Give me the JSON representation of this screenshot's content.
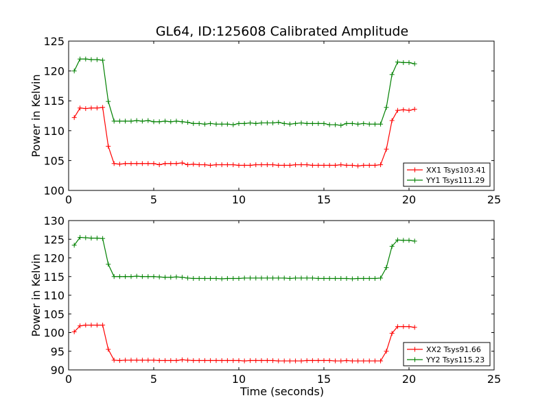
{
  "chart_data": [
    {
      "type": "line",
      "title": "GL64, ID:125608 Calibrated Amplitude",
      "xlabel": "",
      "ylabel": "Power in Kelvin",
      "xlim": [
        0,
        25
      ],
      "ylim": [
        100,
        125
      ],
      "xticks": [
        "0",
        "5",
        "10",
        "15",
        "20",
        "25"
      ],
      "yticks": [
        "100",
        "105",
        "110",
        "115",
        "120",
        "125"
      ],
      "legend_position": "lower-right",
      "series": [
        {
          "name": "XX1 Tsys103.41",
          "color": "#ff0000",
          "x": [
            0.33,
            0.67,
            1.0,
            1.33,
            1.67,
            2.0,
            2.33,
            2.67,
            3.0,
            3.33,
            3.67,
            4.0,
            4.33,
            4.67,
            5.0,
            5.33,
            5.67,
            6.0,
            6.33,
            6.67,
            7.0,
            7.33,
            7.67,
            8.0,
            8.33,
            8.67,
            9.0,
            9.33,
            9.67,
            10.0,
            10.33,
            10.67,
            11.0,
            11.33,
            11.67,
            12.0,
            12.33,
            12.67,
            13.0,
            13.33,
            13.67,
            14.0,
            14.33,
            14.67,
            15.0,
            15.33,
            15.67,
            16.0,
            16.33,
            16.67,
            17.0,
            17.33,
            17.67,
            18.0,
            18.33,
            18.67,
            19.0,
            19.33,
            19.67,
            20.0,
            20.33
          ],
          "y": [
            112.2,
            113.8,
            113.7,
            113.8,
            113.8,
            113.9,
            107.4,
            104.5,
            104.4,
            104.5,
            104.5,
            104.5,
            104.5,
            104.5,
            104.5,
            104.3,
            104.5,
            104.5,
            104.5,
            104.6,
            104.3,
            104.4,
            104.3,
            104.3,
            104.2,
            104.3,
            104.3,
            104.3,
            104.3,
            104.2,
            104.2,
            104.2,
            104.3,
            104.3,
            104.3,
            104.3,
            104.2,
            104.2,
            104.2,
            104.3,
            104.3,
            104.3,
            104.2,
            104.2,
            104.2,
            104.2,
            104.2,
            104.3,
            104.2,
            104.2,
            104.1,
            104.2,
            104.2,
            104.2,
            104.3,
            106.9,
            111.7,
            113.4,
            113.5,
            113.4,
            113.6
          ]
        },
        {
          "name": "YY1 Tsys111.29",
          "color": "#008000",
          "x": [
            0.33,
            0.67,
            1.0,
            1.33,
            1.67,
            2.0,
            2.33,
            2.67,
            3.0,
            3.33,
            3.67,
            4.0,
            4.33,
            4.67,
            5.0,
            5.33,
            5.67,
            6.0,
            6.33,
            6.67,
            7.0,
            7.33,
            7.67,
            8.0,
            8.33,
            8.67,
            9.0,
            9.33,
            9.67,
            10.0,
            10.33,
            10.67,
            11.0,
            11.33,
            11.67,
            12.0,
            12.33,
            12.67,
            13.0,
            13.33,
            13.67,
            14.0,
            14.33,
            14.67,
            15.0,
            15.33,
            15.67,
            16.0,
            16.33,
            16.67,
            17.0,
            17.33,
            17.67,
            18.0,
            18.33,
            18.67,
            19.0,
            19.33,
            19.67,
            20.0,
            20.33
          ],
          "y": [
            120.0,
            122.0,
            122.0,
            121.9,
            121.9,
            121.8,
            114.9,
            111.6,
            111.6,
            111.6,
            111.6,
            111.7,
            111.6,
            111.7,
            111.5,
            111.5,
            111.6,
            111.5,
            111.6,
            111.5,
            111.4,
            111.2,
            111.2,
            111.1,
            111.2,
            111.1,
            111.1,
            111.1,
            111.0,
            111.2,
            111.2,
            111.3,
            111.2,
            111.3,
            111.3,
            111.3,
            111.4,
            111.2,
            111.1,
            111.2,
            111.3,
            111.2,
            111.2,
            111.2,
            111.2,
            111.0,
            111.0,
            110.9,
            111.2,
            111.2,
            111.1,
            111.2,
            111.1,
            111.1,
            111.1,
            113.9,
            119.4,
            121.5,
            121.4,
            121.4,
            121.2
          ]
        }
      ]
    },
    {
      "type": "line",
      "title": "",
      "xlabel": "Time (seconds)",
      "ylabel": "Power in Kelvin",
      "xlim": [
        0,
        25
      ],
      "ylim": [
        90,
        130
      ],
      "xticks": [
        "0",
        "5",
        "10",
        "15",
        "20",
        "25"
      ],
      "yticks": [
        "90",
        "95",
        "100",
        "105",
        "110",
        "115",
        "120",
        "125",
        "130"
      ],
      "legend_position": "lower-right",
      "series": [
        {
          "name": "XX2 Tsys91.66",
          "color": "#ff0000",
          "x": [
            0.33,
            0.67,
            1.0,
            1.33,
            1.67,
            2.0,
            2.33,
            2.67,
            3.0,
            3.33,
            3.67,
            4.0,
            4.33,
            4.67,
            5.0,
            5.33,
            5.67,
            6.0,
            6.33,
            6.67,
            7.0,
            7.33,
            7.67,
            8.0,
            8.33,
            8.67,
            9.0,
            9.33,
            9.67,
            10.0,
            10.33,
            10.67,
            11.0,
            11.33,
            11.67,
            12.0,
            12.33,
            12.67,
            13.0,
            13.33,
            13.67,
            14.0,
            14.33,
            14.67,
            15.0,
            15.33,
            15.67,
            16.0,
            16.33,
            16.67,
            17.0,
            17.33,
            17.67,
            18.0,
            18.33,
            18.67,
            19.0,
            19.33,
            19.67,
            20.0,
            20.33
          ],
          "y": [
            100.2,
            101.8,
            102.0,
            102.0,
            102.0,
            102.0,
            95.5,
            92.6,
            92.5,
            92.6,
            92.6,
            92.6,
            92.6,
            92.6,
            92.6,
            92.5,
            92.5,
            92.5,
            92.5,
            92.7,
            92.6,
            92.5,
            92.5,
            92.5,
            92.5,
            92.5,
            92.5,
            92.5,
            92.5,
            92.5,
            92.4,
            92.5,
            92.5,
            92.5,
            92.5,
            92.5,
            92.4,
            92.4,
            92.4,
            92.4,
            92.4,
            92.5,
            92.5,
            92.5,
            92.5,
            92.5,
            92.4,
            92.4,
            92.5,
            92.4,
            92.4,
            92.4,
            92.4,
            92.4,
            92.4,
            95.0,
            99.8,
            101.6,
            101.6,
            101.6,
            101.4
          ]
        },
        {
          "name": "YY2 Tsys115.23",
          "color": "#008000",
          "x": [
            0.33,
            0.67,
            1.0,
            1.33,
            1.67,
            2.0,
            2.33,
            2.67,
            3.0,
            3.33,
            3.67,
            4.0,
            4.33,
            4.67,
            5.0,
            5.33,
            5.67,
            6.0,
            6.33,
            6.67,
            7.0,
            7.33,
            7.67,
            8.0,
            8.33,
            8.67,
            9.0,
            9.33,
            9.67,
            10.0,
            10.33,
            10.67,
            11.0,
            11.33,
            11.67,
            12.0,
            12.33,
            12.67,
            13.0,
            13.33,
            13.67,
            14.0,
            14.33,
            14.67,
            15.0,
            15.33,
            15.67,
            16.0,
            16.33,
            16.67,
            17.0,
            17.33,
            17.67,
            18.0,
            18.33,
            18.67,
            19.0,
            19.33,
            19.67,
            20.0,
            20.33
          ],
          "y": [
            123.4,
            125.5,
            125.4,
            125.3,
            125.3,
            125.2,
            118.3,
            115.0,
            115.0,
            115.0,
            115.0,
            115.1,
            115.0,
            115.0,
            115.0,
            114.9,
            114.8,
            114.8,
            114.9,
            114.8,
            114.6,
            114.5,
            114.5,
            114.5,
            114.5,
            114.5,
            114.4,
            114.5,
            114.5,
            114.5,
            114.6,
            114.6,
            114.6,
            114.6,
            114.6,
            114.6,
            114.6,
            114.6,
            114.5,
            114.6,
            114.6,
            114.6,
            114.6,
            114.5,
            114.5,
            114.5,
            114.5,
            114.5,
            114.5,
            114.4,
            114.5,
            114.5,
            114.5,
            114.5,
            114.6,
            117.4,
            123.1,
            124.8,
            124.7,
            124.7,
            124.5
          ]
        }
      ]
    }
  ]
}
